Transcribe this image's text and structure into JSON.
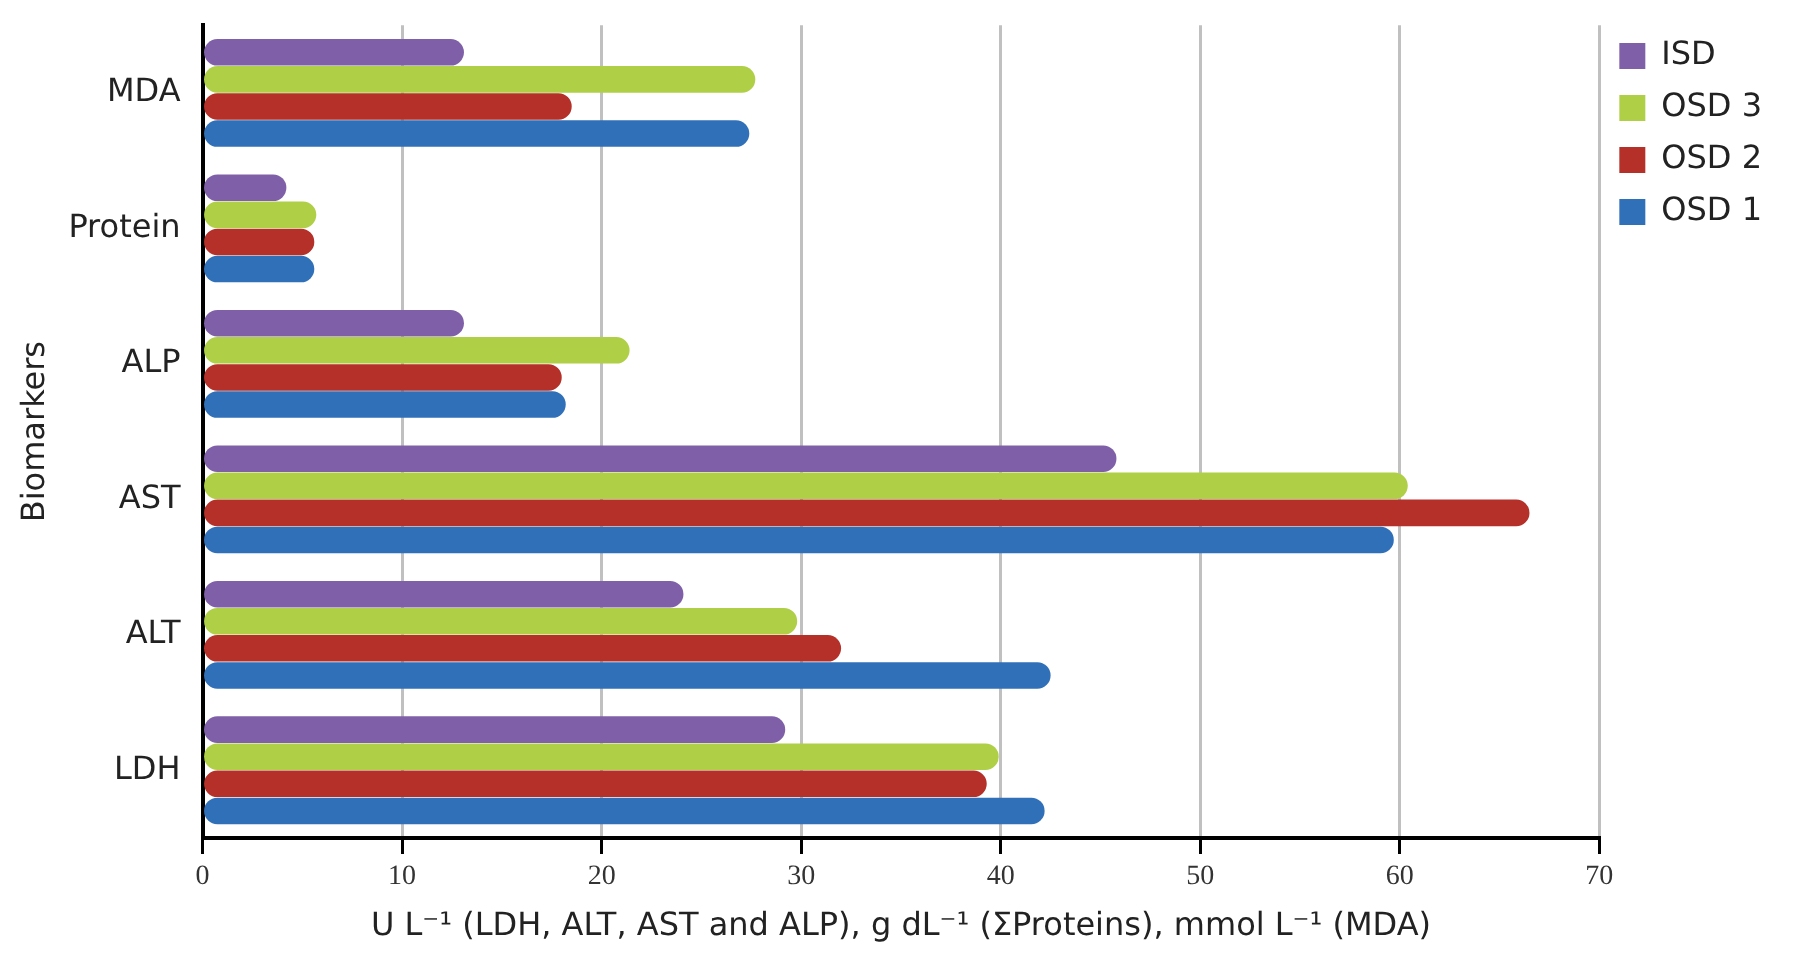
{
  "chart_data": {
    "type": "bar",
    "orientation": "horizontal",
    "xlabel": "U L⁻¹ (LDH, ALT, AST and ALP), g dL⁻¹ (ΣProteins), mmol L⁻¹ (MDA)",
    "ylabel": "Biomarkers",
    "categories": [
      "MDA",
      "Protein",
      "ALP",
      "AST",
      "ALT",
      "LDH"
    ],
    "series": [
      {
        "name": "ISD",
        "color": "#7f60a8",
        "values": [
          13.1,
          4.2,
          13.1,
          45.8,
          24.1,
          29.2
        ]
      },
      {
        "name": "OSD 3",
        "color": "#afd046",
        "values": [
          27.7,
          5.7,
          21.4,
          60.4,
          29.8,
          39.9
        ]
      },
      {
        "name": "OSD 2",
        "color": "#b53028",
        "values": [
          18.5,
          5.6,
          18.0,
          66.5,
          32.0,
          39.3
        ]
      },
      {
        "name": "OSD 1",
        "color": "#3070b8",
        "values": [
          27.4,
          5.6,
          18.2,
          59.7,
          42.5,
          42.2
        ]
      }
    ],
    "xlim": [
      0,
      70
    ],
    "xticks": [
      0,
      10,
      20,
      30,
      40,
      50,
      60,
      70
    ],
    "grid": "x",
    "legend": "top right"
  }
}
